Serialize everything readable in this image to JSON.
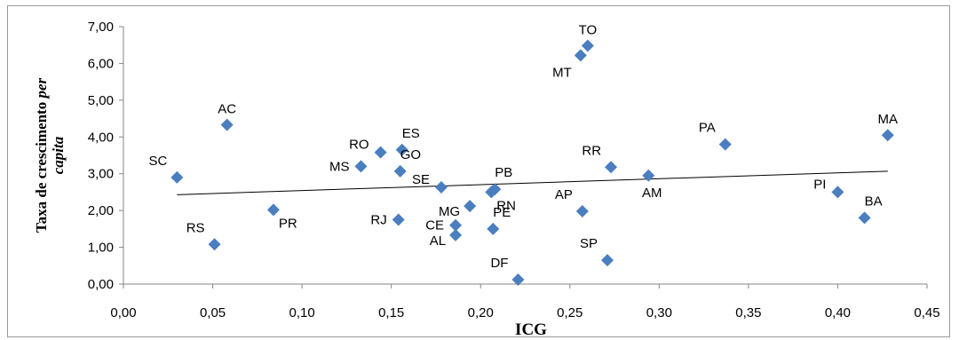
{
  "chart_data": {
    "type": "scatter",
    "xlabel": "ICG",
    "ylabel_parts": [
      {
        "text": "Taxa de crescimento ",
        "italic": false
      },
      {
        "text": "per",
        "italic": true
      }
    ],
    "ylabel_line2": "capita",
    "xlim": [
      0,
      0.45
    ],
    "ylim": [
      0,
      7
    ],
    "x_ticks": [
      "0,00",
      "0,05",
      "0,10",
      "0,15",
      "0,20",
      "0,25",
      "0,30",
      "0,35",
      "0,40",
      "0,45"
    ],
    "y_ticks": [
      "0,00",
      "1,00",
      "2,00",
      "3,00",
      "4,00",
      "5,00",
      "6,00",
      "7,00"
    ],
    "grid": false,
    "marker_color": "#4a7ebf",
    "trendline": {
      "type": "linear",
      "x": [
        0.03,
        0.428
      ],
      "y": [
        2.43,
        3.07
      ],
      "color": "#000000"
    },
    "points": [
      {
        "label": "TO",
        "x": 0.26,
        "y": 6.48,
        "pos": "above"
      },
      {
        "label": "MT",
        "x": 0.256,
        "y": 6.22,
        "pos": "below-left"
      },
      {
        "label": "AC",
        "x": 0.058,
        "y": 4.33,
        "pos": "above"
      },
      {
        "label": "MA",
        "x": 0.428,
        "y": 4.05,
        "pos": "above"
      },
      {
        "label": "PA",
        "x": 0.337,
        "y": 3.8,
        "pos": "above-left"
      },
      {
        "label": "ES",
        "x": 0.156,
        "y": 3.65,
        "pos": "above-right"
      },
      {
        "label": "RO",
        "x": 0.144,
        "y": 3.58,
        "pos": "left-up"
      },
      {
        "label": "MS",
        "x": 0.133,
        "y": 3.2,
        "pos": "left"
      },
      {
        "label": "RR",
        "x": 0.273,
        "y": 3.18,
        "pos": "above-left"
      },
      {
        "label": "GO",
        "x": 0.155,
        "y": 3.07,
        "pos": "above-right"
      },
      {
        "label": "AM",
        "x": 0.294,
        "y": 2.95,
        "pos": "below"
      },
      {
        "label": "SC",
        "x": 0.03,
        "y": 2.9,
        "pos": "above-left"
      },
      {
        "label": "SE",
        "x": 0.178,
        "y": 2.63,
        "pos": "left-up"
      },
      {
        "label": "PB",
        "x": 0.208,
        "y": 2.58,
        "pos": "above-right"
      },
      {
        "label": "RN",
        "x": 0.206,
        "y": 2.5,
        "pos": "below-right"
      },
      {
        "label": "PI",
        "x": 0.4,
        "y": 2.5,
        "pos": "left-up"
      },
      {
        "label": "MG",
        "x": 0.194,
        "y": 2.12,
        "pos": "left-down"
      },
      {
        "label": "PR",
        "x": 0.084,
        "y": 2.02,
        "pos": "below-right"
      },
      {
        "label": "AP",
        "x": 0.257,
        "y": 1.98,
        "pos": "above-left"
      },
      {
        "label": "BA",
        "x": 0.415,
        "y": 1.8,
        "pos": "above-right"
      },
      {
        "label": "RJ",
        "x": 0.154,
        "y": 1.75,
        "pos": "left"
      },
      {
        "label": "CE",
        "x": 0.186,
        "y": 1.6,
        "pos": "left"
      },
      {
        "label": "PE",
        "x": 0.207,
        "y": 1.5,
        "pos": "above-right"
      },
      {
        "label": "AL",
        "x": 0.186,
        "y": 1.33,
        "pos": "left-down"
      },
      {
        "label": "RS",
        "x": 0.051,
        "y": 1.08,
        "pos": "above-left"
      },
      {
        "label": "SP",
        "x": 0.271,
        "y": 0.65,
        "pos": "above-left"
      },
      {
        "label": "DF",
        "x": 0.221,
        "y": 0.12,
        "pos": "above-left"
      }
    ]
  }
}
